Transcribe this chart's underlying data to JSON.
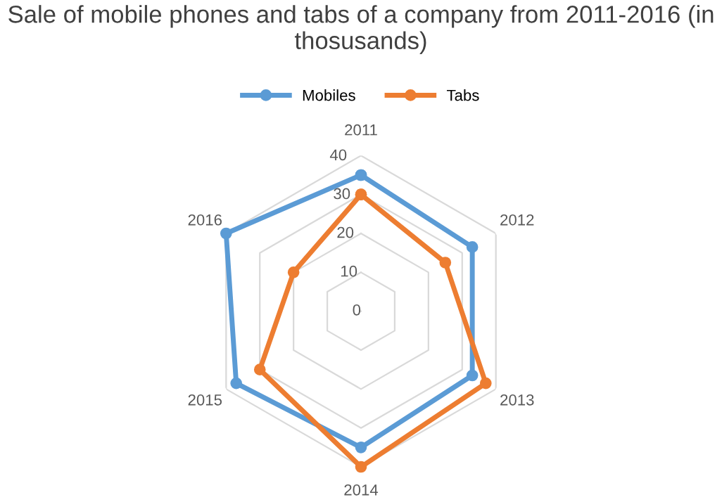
{
  "chart_data": {
    "type": "radar",
    "title": "Sale of mobile phones and tabs of a company from 2011-2016 (in thosusands)",
    "categories": [
      "2011",
      "2012",
      "2013",
      "2014",
      "2015",
      "2016"
    ],
    "series": [
      {
        "name": "Mobiles",
        "color": "#5b9bd5",
        "values": [
          35,
          33,
          33,
          35,
          37,
          40
        ]
      },
      {
        "name": "Tabs",
        "color": "#ed7d31",
        "values": [
          30,
          25,
          37,
          40,
          30,
          20
        ]
      }
    ],
    "ylim": [
      0,
      40
    ],
    "yticks": [
      0,
      10,
      20,
      30,
      40
    ],
    "legend": "top",
    "marker": "circle",
    "grid": true
  }
}
